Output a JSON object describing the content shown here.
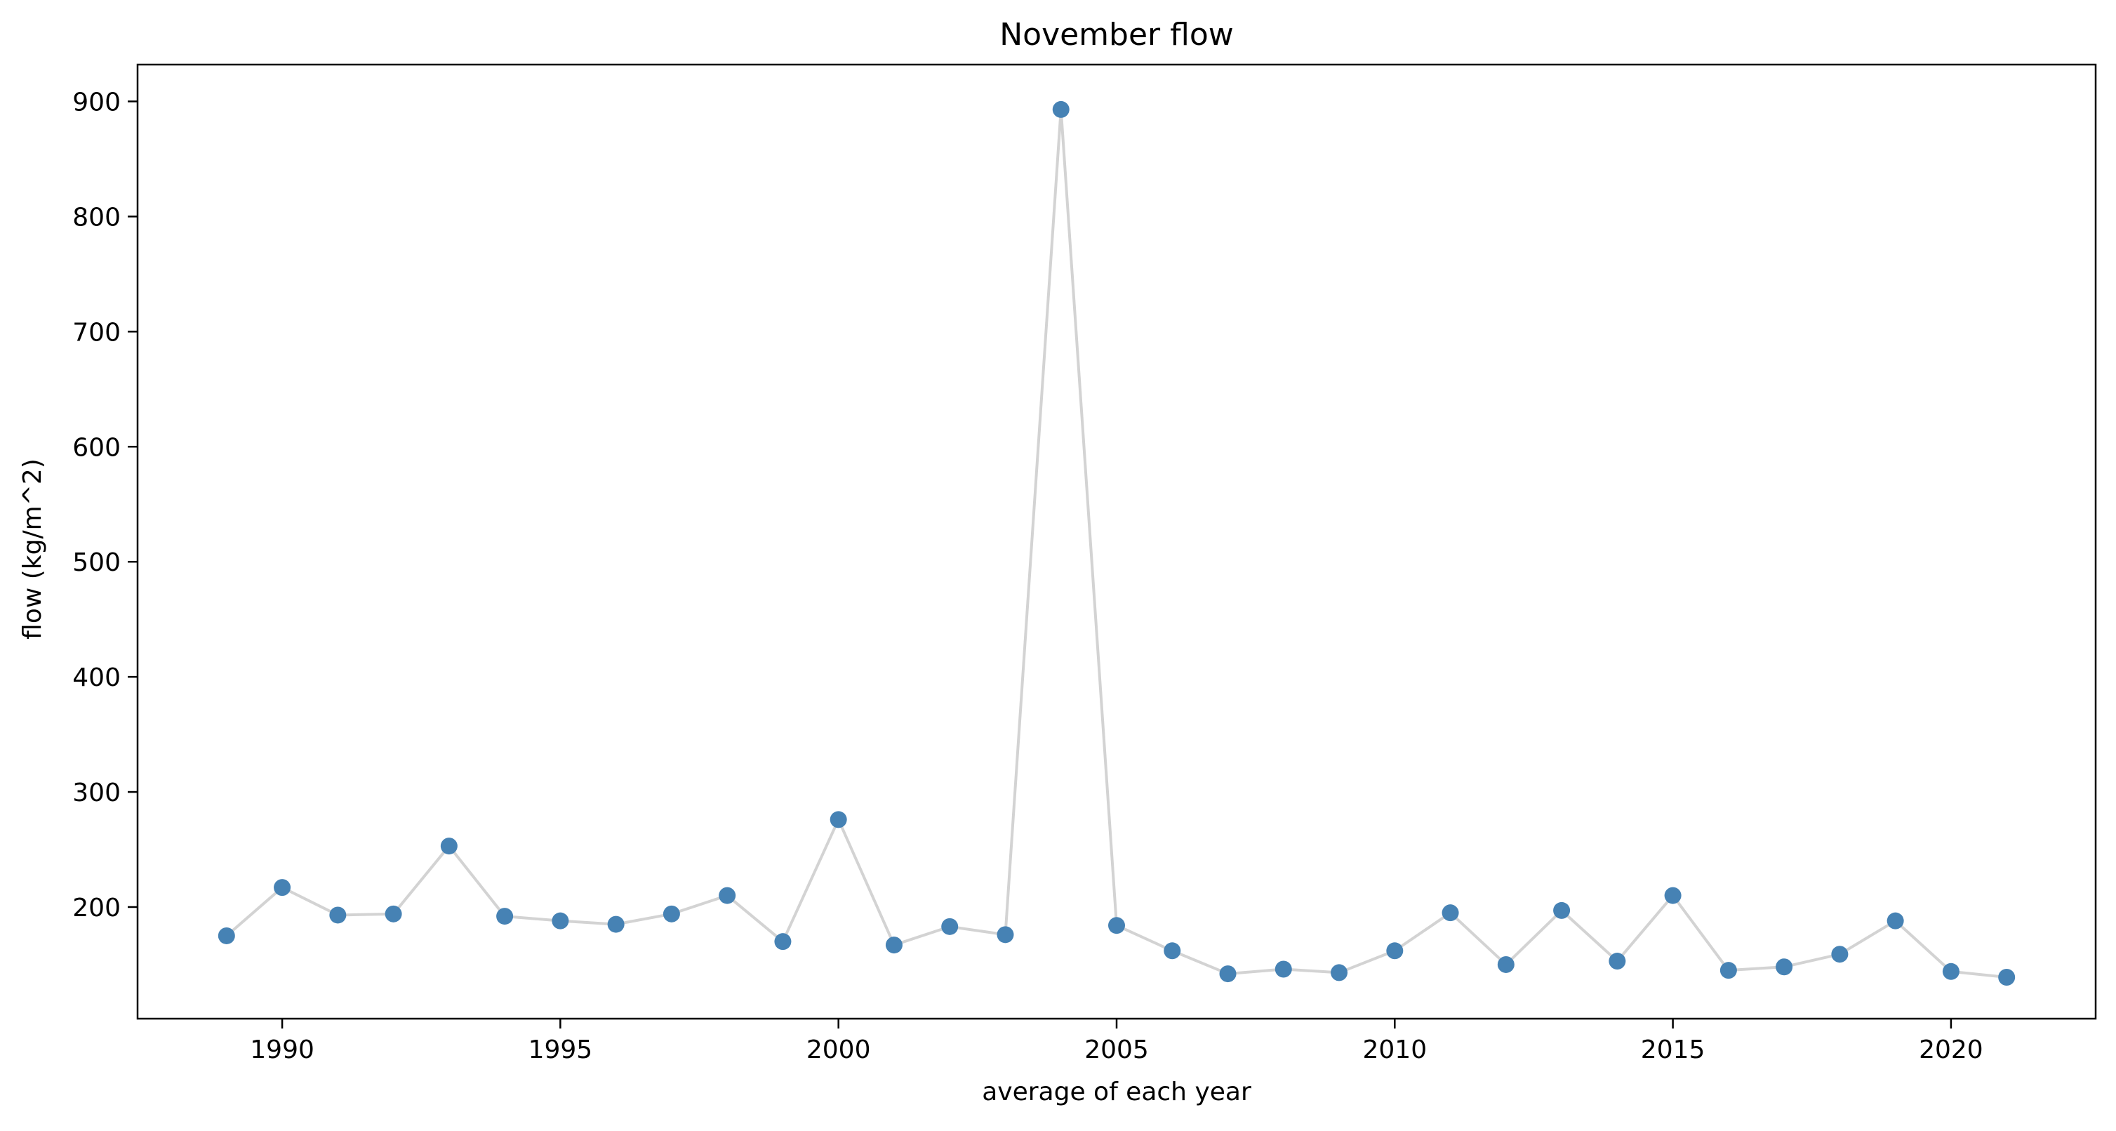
{
  "chart_data": {
    "type": "line",
    "title": "November flow",
    "xlabel": "average of each year",
    "ylabel": "flow (kg/m^2)",
    "xlim": [
      1987.4,
      2022.6
    ],
    "ylim": [
      103,
      932
    ],
    "xticks": [
      1990,
      1995,
      2000,
      2005,
      2010,
      2015,
      2020
    ],
    "yticks": [
      200,
      300,
      400,
      500,
      600,
      700,
      800,
      900
    ],
    "grid": false,
    "legend": "none",
    "line_color": "#d3d3d3",
    "marker_color": "#4682b4",
    "series": [
      {
        "x": [
          1989,
          1990,
          1991,
          1992,
          1993,
          1994,
          1995,
          1996,
          1997,
          1998,
          1999,
          2000,
          2001,
          2002,
          2003,
          2004,
          2005,
          2006,
          2007,
          2008,
          2009,
          2010,
          2011,
          2012,
          2013,
          2014,
          2015,
          2016,
          2017,
          2018,
          2019,
          2020,
          2021
        ],
        "values": [
          175,
          217,
          193,
          194,
          253,
          192,
          188,
          185,
          194,
          210,
          170,
          276,
          167,
          183,
          176,
          893,
          184,
          162,
          142,
          146,
          143,
          162,
          195,
          150,
          197,
          153,
          210,
          145,
          148,
          159,
          188,
          144,
          139
        ]
      }
    ]
  }
}
